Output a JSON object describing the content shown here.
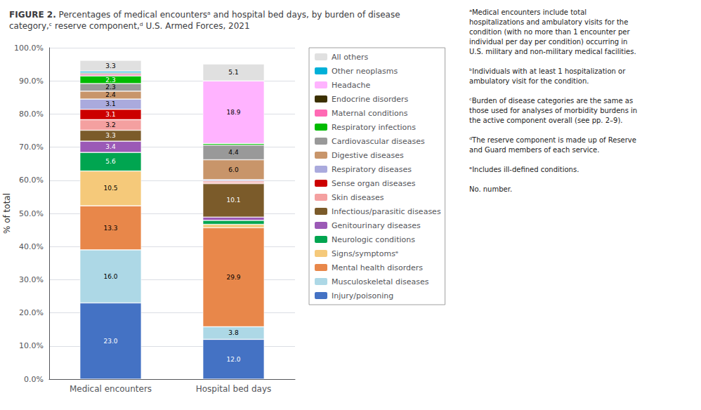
{
  "chart_data": {
    "type": "bar",
    "title": "FIGURE 2. Percentages of medical encountersᵃ and hospital bed days, by burden of disease\ncategory,ᶜ reserve component,ᵈ U.S. Armed Forces, 2021",
    "ylabel": "% of total",
    "categories": [
      "Medical encounters",
      "Hospital bed days"
    ],
    "stacked": true,
    "grid": true,
    "legend": "right",
    "data_labels": true,
    "series": [
      {
        "name": "Injury/poisoning",
        "color": "#4472C4",
        "values": [
          23.0,
          12.0
        ],
        "value_labels": [
          "23.0",
          "12.0"
        ]
      },
      {
        "name": "Musculoskeletal diseases",
        "color": "#ADD8E6",
        "values": [
          16.0,
          3.8
        ],
        "value_labels": [
          "16.0",
          "3.8"
        ]
      },
      {
        "name": "Mental health disorders",
        "color": "#E8874A",
        "values": [
          13.3,
          29.9
        ],
        "value_labels": [
          "13.3",
          "29.9"
        ]
      },
      {
        "name": "Signs/symptomsᵉ",
        "color": "#F5C97A",
        "values": [
          10.5,
          1.0
        ],
        "value_labels": [
          "10.5",
          null
        ]
      },
      {
        "name": "Neurologic conditions",
        "color": "#00A550",
        "values": [
          5.6,
          1.2
        ],
        "value_labels": [
          "5.6",
          null
        ]
      },
      {
        "name": "Genitourinary diseases",
        "color": "#9B59B6",
        "values": [
          3.4,
          1.0
        ],
        "value_labels": [
          "3.4",
          null
        ]
      },
      {
        "name": "Infectious/parasitic diseases",
        "color": "#7B5B2A",
        "values": [
          3.3,
          10.1
        ],
        "value_labels": [
          "3.3",
          "10.1"
        ]
      },
      {
        "name": "Skin diseases",
        "color": "#F4A0A0",
        "values": [
          3.2,
          0.5
        ],
        "value_labels": [
          "3.2",
          null
        ]
      },
      {
        "name": "Sense organ diseases",
        "color": "#CC0000",
        "values": [
          3.1,
          0.3
        ],
        "value_labels": [
          "3.1",
          null
        ]
      },
      {
        "name": "Respiratory diseases",
        "color": "#AAAADD",
        "values": [
          3.1,
          0.4
        ],
        "value_labels": [
          "3.1",
          null
        ]
      },
      {
        "name": "Digestive diseases",
        "color": "#C8956A",
        "values": [
          2.4,
          6.0
        ],
        "value_labels": [
          "2.4",
          "6.0"
        ]
      },
      {
        "name": "Cardiovascular diseases",
        "color": "#999999",
        "values": [
          2.3,
          4.4
        ],
        "value_labels": [
          "2.3",
          "4.4"
        ]
      },
      {
        "name": "Respiratory infections",
        "color": "#00BB00",
        "values": [
          2.3,
          0.5
        ],
        "value_labels": [
          "2.3",
          null
        ]
      },
      {
        "name": "Maternal conditions",
        "color": "#FF69B4",
        "values": [
          0.5,
          0.0
        ],
        "value_labels": [
          null,
          null
        ]
      },
      {
        "name": "Endocrine disorders",
        "color": "#3B3000",
        "values": [
          0.4,
          0.0
        ],
        "value_labels": [
          null,
          null
        ]
      },
      {
        "name": "Headache",
        "color": "#FFB3FF",
        "values": [
          0.0,
          18.9
        ],
        "value_labels": [
          null,
          "18.9"
        ]
      },
      {
        "name": "Other neoplasms",
        "color": "#00B0D8",
        "values": [
          0.5,
          0.0
        ],
        "value_labels": [
          null,
          null
        ]
      },
      {
        "name": "All others",
        "color": "#E0E0E0",
        "values": [
          3.3,
          5.1
        ],
        "value_labels": [
          "3.3",
          "5.1"
        ]
      }
    ],
    "legend_order": [
      "All others",
      "Other neoplasms",
      "Headache",
      "Endocrine disorders",
      "Maternal conditions",
      "Respiratory infections",
      "Cardiovascular diseases",
      "Digestive diseases",
      "Respiratory diseases",
      "Sense organ diseases",
      "Skin diseases",
      "Infectious/parasitic diseases",
      "Genitourinary diseases",
      "Neurologic conditions",
      "Signs/symptomsᵉ",
      "Mental health disorders",
      "Musculoskeletal diseases",
      "Injury/poisoning"
    ],
    "annotations": [
      "ᵃMedical encounters include total\nhospitalizations and ambulatory visits for the\ncondition (with no more than 1 encounter per\nindividual per day per condition) occurring in\nU.S. military and non-military medical facilities.\n\nᵇIndividuals with at least 1 hospitalization or\nambulatory visit for the condition.\n\nᶜBurden of disease categories are the same as\nthose used for analyses of morbidity burdens in\nthe active component overall (see pp. 2–9).\n\nᵈThe reserve component is made up of Reserve\nand Guard members of each service.\n\nᵉIncludes ill-defined conditions.\n\nNo. number."
    ],
    "ylim": [
      0,
      100
    ],
    "yticks": [
      {
        "value": 0,
        "label": "0.0%"
      },
      {
        "value": 10,
        "label": "10.0%"
      },
      {
        "value": 20,
        "label": "20.0%"
      },
      {
        "value": 30,
        "label": "30.0%"
      },
      {
        "value": 40,
        "label": "40.0%"
      },
      {
        "value": 50,
        "label": "50.0%"
      },
      {
        "value": 60,
        "label": "60.0%"
      },
      {
        "value": 70,
        "label": "70.0%"
      },
      {
        "value": 80,
        "label": "80.0%"
      },
      {
        "value": 90,
        "label": "90.0%"
      },
      {
        "value": 100,
        "label": "100.0%"
      }
    ]
  }
}
